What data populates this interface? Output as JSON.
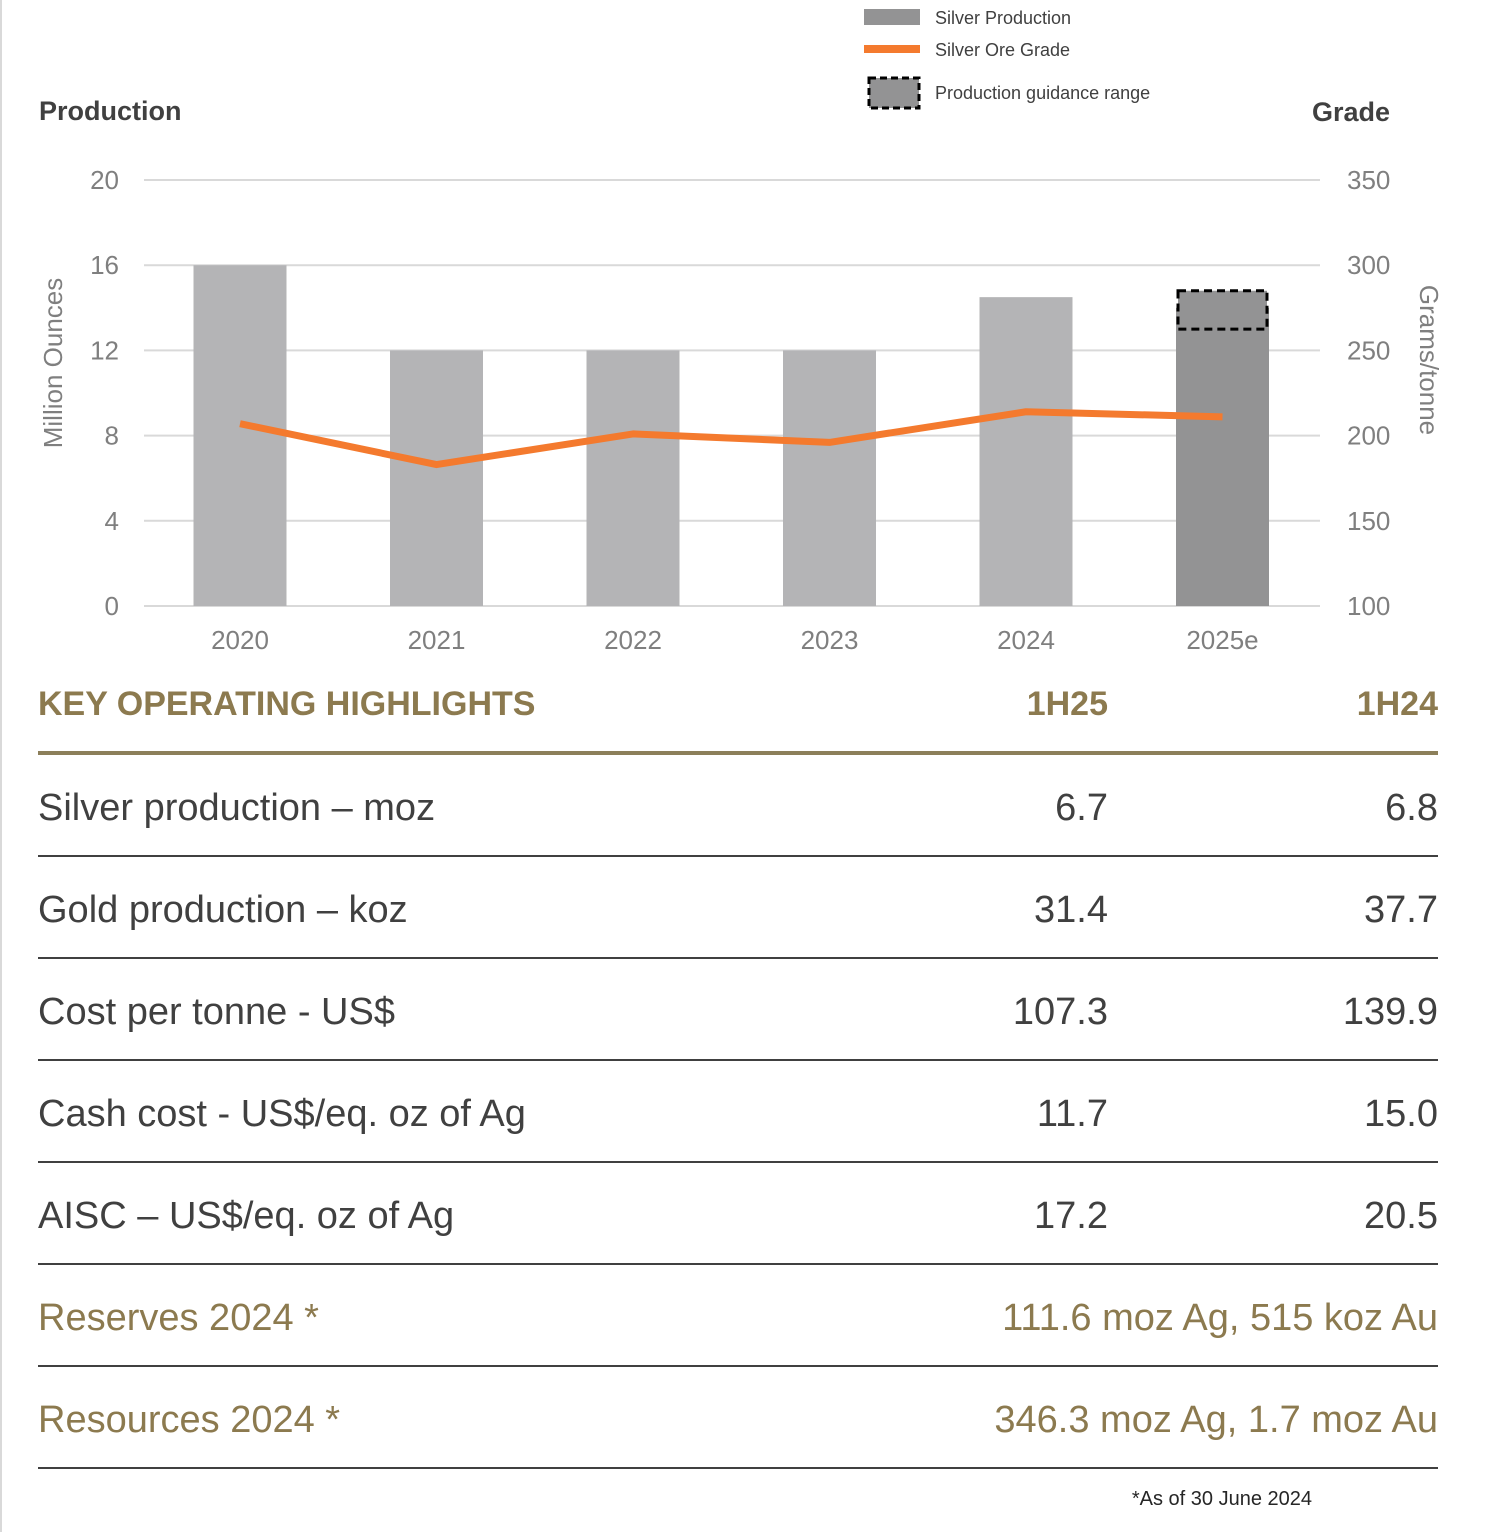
{
  "legend": {
    "production": "Silver Production",
    "grade": "Silver Ore Grade",
    "guidance": "Production guidance range"
  },
  "axes": {
    "left_head": "Production",
    "right_head": "Grade",
    "left_title": "Million Ounces",
    "right_title": "Grams/tonne"
  },
  "colors": {
    "bar": "#b4b4b6",
    "bar_estimate": "#939394",
    "line": "#f47a2e",
    "gold_text": "#8c7a4f",
    "grid": "#d9d9d9"
  },
  "chart_data": {
    "type": "bar",
    "categories": [
      "2020",
      "2021",
      "2022",
      "2023",
      "2024",
      "2025e"
    ],
    "series": [
      {
        "name": "Silver Production",
        "type": "bar",
        "axis": "left",
        "values": [
          16,
          12,
          12,
          12,
          14.5,
          14
        ]
      },
      {
        "name": "Silver Ore Grade",
        "type": "line",
        "axis": "right",
        "values": [
          207,
          183,
          201,
          196,
          214,
          211
        ]
      }
    ],
    "guidance_range": {
      "category": "2025e",
      "low": 13,
      "high": 14.8
    },
    "y_left": {
      "ticks": [
        0,
        4,
        8,
        12,
        16,
        20
      ],
      "lim": [
        0,
        20
      ]
    },
    "y_right": {
      "ticks": [
        100,
        150,
        200,
        250,
        300,
        350
      ],
      "lim": [
        100,
        350
      ]
    },
    "grid": true,
    "legend_position": "top"
  },
  "table": {
    "title": "KEY OPERATING HIGHLIGHTS",
    "col1": "1H25",
    "col2": "1H24",
    "rows": [
      {
        "label": "Silver production – moz",
        "v1": "6.7",
        "v2": "6.8"
      },
      {
        "label": "Gold production – koz",
        "v1": "31.4",
        "v2": "37.7"
      },
      {
        "label": "Cost per tonne - US$",
        "v1": "107.3",
        "v2": "139.9"
      },
      {
        "label": "Cash cost - US$/eq. oz of Ag",
        "v1": "11.7",
        "v2": "15.0"
      },
      {
        "label": "AISC – US$/eq. oz of Ag",
        "v1": "17.2",
        "v2": "20.5"
      }
    ],
    "reserves": {
      "label": "Reserves 2024 *",
      "value": "111.6 moz Ag, 515 koz Au"
    },
    "resources": {
      "label": "Resources 2024 *",
      "value": "346.3 moz Ag, 1.7 moz Au"
    }
  },
  "footnote": "*As of 30 June 2024"
}
